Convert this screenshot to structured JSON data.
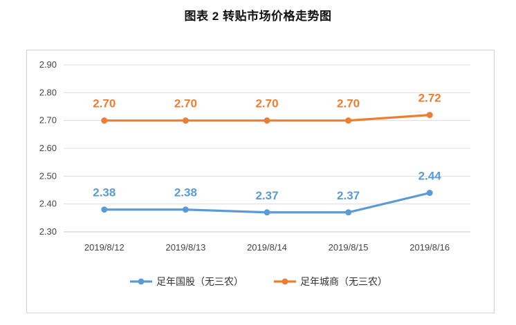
{
  "title": "图表 2  转贴市场价格走势图",
  "chart_data": {
    "type": "line",
    "categories": [
      "2019/8/12",
      "2019/8/13",
      "2019/8/14",
      "2019/8/15",
      "2019/8/16"
    ],
    "ylim": [
      2.3,
      2.9
    ],
    "yticks": [
      "2.30",
      "2.40",
      "2.50",
      "2.60",
      "2.70",
      "2.80",
      "2.90"
    ],
    "grid": true,
    "legend_position": "bottom",
    "series": [
      {
        "name": "足年国股（无三农）",
        "color": "#5B9BD5",
        "values": [
          2.38,
          2.38,
          2.37,
          2.37,
          2.44
        ],
        "labels": [
          "2.38",
          "2.38",
          "2.37",
          "2.37",
          "2.44"
        ]
      },
      {
        "name": "足年城商（无三农）",
        "color": "#ED7D31",
        "values": [
          2.7,
          2.7,
          2.7,
          2.7,
          2.72
        ],
        "labels": [
          "2.70",
          "2.70",
          "2.70",
          "2.70",
          "2.72"
        ]
      }
    ]
  }
}
